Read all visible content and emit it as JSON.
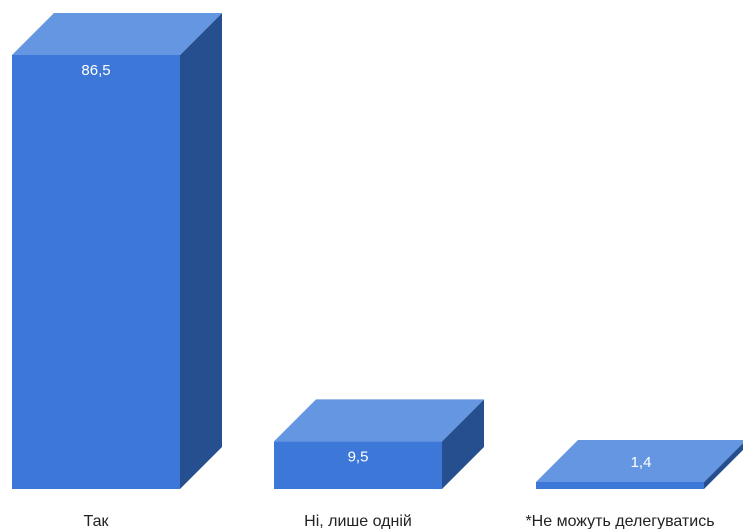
{
  "chart_data": {
    "type": "bar",
    "style": "3d",
    "categories": [
      "Так",
      "Ні, лише одній",
      "*Не можуть делегуватись"
    ],
    "values": [
      86.5,
      9.5,
      1.4
    ],
    "value_labels": [
      "86,5",
      "9,5",
      "1,4"
    ],
    "title": "",
    "xlabel": "",
    "ylabel": "",
    "ylim": [
      0,
      86.5
    ],
    "grid": false,
    "legend": "none",
    "colors": {
      "front": "#3d78d8",
      "top": "#6596e2",
      "side": "#264f8f"
    }
  }
}
